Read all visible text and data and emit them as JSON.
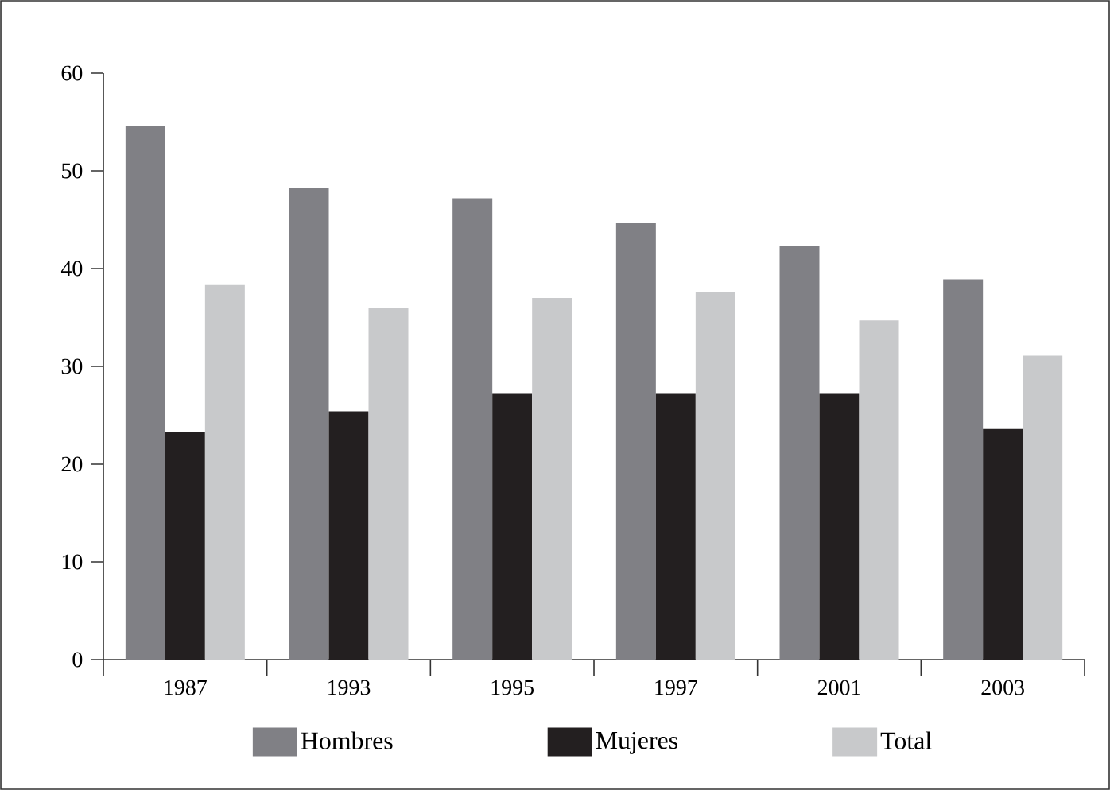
{
  "chart_data": {
    "type": "bar",
    "categories": [
      "1987",
      "1993",
      "1995",
      "1997",
      "2001",
      "2003"
    ],
    "series": [
      {
        "name": "Hombres",
        "color": "#808085",
        "values": [
          54.6,
          48.2,
          47.2,
          44.7,
          42.3,
          38.9
        ]
      },
      {
        "name": "Mujeres",
        "color": "#231f20",
        "values": [
          23.3,
          25.4,
          27.2,
          27.2,
          27.2,
          23.6
        ]
      },
      {
        "name": "Total",
        "color": "#c8c9cb",
        "values": [
          38.4,
          36.0,
          37.0,
          37.6,
          34.7,
          31.1
        ]
      }
    ],
    "ylim": [
      0,
      60
    ],
    "yticks": [
      0,
      10,
      20,
      30,
      40,
      50,
      60
    ],
    "grid": false,
    "legend": "bottom"
  }
}
